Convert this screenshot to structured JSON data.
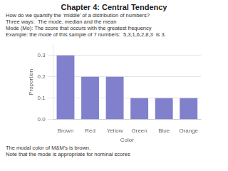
{
  "chart_data": {
    "type": "bar",
    "title": "Chapter 4: Central Tendency",
    "annotations": [
      "How do we quantify the ‘middle’ of a distribution of numbers?",
      "Three ways:  The mode, median and the mean",
      "Mode (Mo): The score that occurs with the greatest frequency",
      "Example: the mode of this sample of 7 numbers:  5,3,1,6,2,8,3  is 3.",
      "The modal color of M&M’s is brown.",
      "Note that the mode is appropriate for nominal scores"
    ],
    "categories": [
      "Brown",
      "Red",
      "Yellow",
      "Green",
      "Blue",
      "Orange"
    ],
    "values": [
      0.3,
      0.2,
      0.2,
      0.1,
      0.1,
      0.1
    ],
    "color": "#8080cc",
    "xlabel": "Color",
    "ylabel": "Proportion",
    "ylim": [
      0,
      0.35
    ],
    "yticks": [
      {
        "value": 0.0,
        "label": "0.0"
      },
      0.1,
      0.2,
      0.3
    ],
    "grid": true
  }
}
